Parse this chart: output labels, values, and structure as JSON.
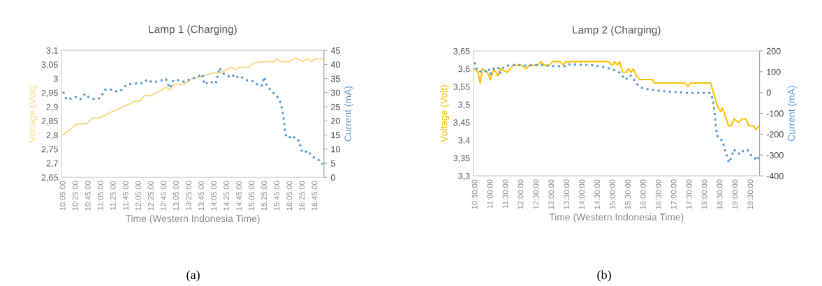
{
  "chart_data": [
    {
      "type": "line",
      "title": "Lamp 1 (Charging)",
      "xlabel": "Time (Western Indonesia Time)",
      "ylabel": "Voltage (Volt)",
      "y2label": "Current (mA)",
      "annotations": [
        "(a)"
      ],
      "xlim": [
        10.04,
        16.98
      ],
      "xticks": [
        {
          "value": 10.0833,
          "label": "10:05:00"
        },
        {
          "value": 10.4167,
          "label": "10:25:00"
        },
        {
          "value": 10.75,
          "label": "10:45:00"
        },
        {
          "value": 11.0833,
          "label": "11:05:00"
        },
        {
          "value": 11.4167,
          "label": "11:25:00"
        },
        {
          "value": 11.75,
          "label": "11:45:00"
        },
        {
          "value": 12.0833,
          "label": "12:05:00"
        },
        {
          "value": 12.4167,
          "label": "12:25:00"
        },
        {
          "value": 12.75,
          "label": "12:45:00"
        },
        {
          "value": 13.0833,
          "label": "13:05:00"
        },
        {
          "value": 13.4167,
          "label": "13:25:00"
        },
        {
          "value": 13.75,
          "label": "13:45:00"
        },
        {
          "value": 14.0833,
          "label": "14:05:00"
        },
        {
          "value": 14.4167,
          "label": "14:25:00"
        },
        {
          "value": 14.75,
          "label": "14:45:00"
        },
        {
          "value": 15.0833,
          "label": "15:05:00"
        },
        {
          "value": 15.4167,
          "label": "15:25:00"
        },
        {
          "value": 15.75,
          "label": "15:45:00"
        },
        {
          "value": 16.0833,
          "label": "16:05:00"
        },
        {
          "value": 16.4167,
          "label": "16:25:00"
        },
        {
          "value": 16.75,
          "label": "16:45:00"
        }
      ],
      "ylim": [
        2.65,
        3.1
      ],
      "yticks": [
        {
          "value": 2.65,
          "label": "2,65"
        },
        {
          "value": 2.7,
          "label": "2,7"
        },
        {
          "value": 2.75,
          "label": "2,75"
        },
        {
          "value": 2.8,
          "label": "2,8"
        },
        {
          "value": 2.85,
          "label": "2,85"
        },
        {
          "value": 2.9,
          "label": "2,9"
        },
        {
          "value": 2.95,
          "label": "2,95"
        },
        {
          "value": 3.0,
          "label": "3"
        },
        {
          "value": 3.05,
          "label": "3,05"
        },
        {
          "value": 3.1,
          "label": "3,1"
        }
      ],
      "y2lim": [
        0,
        45
      ],
      "y2ticks": [
        0,
        5,
        10,
        15,
        20,
        25,
        30,
        35,
        40,
        45
      ],
      "grid": false,
      "series": [
        {
          "color": "#f8d98c",
          "line_style": "solid",
          "x": [
            10.08,
            10.27,
            10.46,
            10.7,
            10.86,
            11.02,
            11.19,
            11.32,
            11.52,
            11.65,
            11.85,
            11.95,
            12.11,
            12.24,
            12.41,
            12.54,
            12.7,
            12.8,
            12.9,
            13.03,
            13.29,
            13.49,
            13.82,
            14.05,
            14.22,
            14.38,
            14.55,
            14.64,
            14.74,
            15.01,
            15.07,
            15.27,
            15.66,
            15.73,
            15.83,
            16.06,
            16.16,
            16.29,
            16.42,
            16.55,
            16.65,
            16.75,
            16.95
          ],
          "values": [
            2.8,
            2.82,
            2.84,
            2.84,
            2.86,
            2.86,
            2.87,
            2.88,
            2.89,
            2.9,
            2.91,
            2.92,
            2.92,
            2.94,
            2.94,
            2.95,
            2.96,
            2.97,
            2.96,
            2.98,
            2.98,
            3.0,
            3.01,
            3.02,
            3.02,
            3.03,
            3.04,
            3.03,
            3.04,
            3.04,
            3.05,
            3.06,
            3.06,
            3.07,
            3.06,
            3.06,
            3.07,
            3.07,
            3.06,
            3.07,
            3.06,
            3.07,
            3.07
          ]
        },
        {
          "color": "#5b9bd5",
          "axis": "y2",
          "line_style": "dotted",
          "x": [
            10.08,
            10.17,
            10.3,
            10.4,
            10.53,
            10.66,
            10.76,
            10.93,
            11.06,
            11.19,
            11.29,
            11.45,
            11.58,
            11.75,
            11.91,
            12.21,
            12.31,
            12.44,
            12.64,
            12.8,
            12.9,
            13.0,
            13.16,
            13.29,
            13.43,
            13.62,
            13.76,
            13.82,
            13.95,
            14.12,
            14.22,
            14.31,
            14.45,
            14.55,
            14.64,
            14.74,
            14.91,
            15.14,
            15.24,
            15.34,
            15.4,
            15.47,
            15.6,
            15.73,
            15.83,
            15.89,
            15.93,
            15.96,
            16.03,
            16.16,
            16.26,
            16.32,
            16.39,
            16.45,
            16.55,
            16.68,
            16.82,
            16.95
          ],
          "values": [
            30.3,
            27.6,
            27.9,
            28.5,
            27.6,
            29.6,
            28.3,
            27.6,
            28.1,
            31.0,
            31.4,
            30.5,
            30.4,
            32.7,
            33.2,
            33.4,
            34.7,
            33.6,
            34.2,
            34.9,
            31.6,
            34.5,
            34.4,
            33.8,
            34.7,
            35.6,
            36.6,
            32.9,
            34.0,
            33.2,
            38.9,
            36.9,
            35.8,
            36.5,
            35.1,
            36.0,
            34.5,
            34.0,
            32.5,
            32.5,
            35.6,
            32.5,
            30.4,
            28.9,
            26.7,
            23.2,
            19.6,
            15.2,
            13.9,
            14.8,
            13.0,
            13.0,
            9.5,
            8.6,
            9.5,
            7.3,
            6.5,
            4.6
          ]
        }
      ]
    },
    {
      "type": "line",
      "title": "Lamp 2 (Charging)",
      "xlabel": "Time (Western Indonesia Time)",
      "ylabel": "Voltage (Volt)",
      "y2label": "Current (mA)",
      "annotations": [
        "(b)"
      ],
      "xlim": [
        10.44,
        19.78
      ],
      "xticks": [
        {
          "value": 10.5,
          "label": "10:30:00"
        },
        {
          "value": 11.0,
          "label": "11:00:00"
        },
        {
          "value": 11.5,
          "label": "11:30:00"
        },
        {
          "value": 12.0,
          "label": "12:00:00"
        },
        {
          "value": 12.5,
          "label": "12:30:00"
        },
        {
          "value": 13.0,
          "label": "13:00:00"
        },
        {
          "value": 13.5,
          "label": "13:30:00"
        },
        {
          "value": 14.0,
          "label": "14:00:00"
        },
        {
          "value": 14.5,
          "label": "14:30:00"
        },
        {
          "value": 15.0,
          "label": "15:00:00"
        },
        {
          "value": 15.5,
          "label": "15:30:00"
        },
        {
          "value": 16.0,
          "label": "16:00:00"
        },
        {
          "value": 16.5,
          "label": "16:30:00"
        },
        {
          "value": 17.0,
          "label": "17:00:00"
        },
        {
          "value": 17.5,
          "label": "17:30:00"
        },
        {
          "value": 18.0,
          "label": "18:00:00"
        },
        {
          "value": 18.5,
          "label": "18:30:00"
        },
        {
          "value": 19.0,
          "label": "19:00:00"
        },
        {
          "value": 19.5,
          "label": "19:30:00"
        }
      ],
      "ylim": [
        3.3,
        3.65
      ],
      "yticks": [
        {
          "value": 3.3,
          "label": "3,3"
        },
        {
          "value": 3.35,
          "label": "3,35"
        },
        {
          "value": 3.4,
          "label": "3,4"
        },
        {
          "value": 3.45,
          "label": "3,45"
        },
        {
          "value": 3.5,
          "label": "3,5"
        },
        {
          "value": 3.55,
          "label": "3,55"
        },
        {
          "value": 3.6,
          "label": "3,6"
        },
        {
          "value": 3.65,
          "label": "3,65"
        }
      ],
      "y2lim": [
        -400,
        200
      ],
      "y2ticks": [
        -400,
        -300,
        -200,
        -100,
        0,
        100,
        200
      ],
      "grid": false,
      "series": [
        {
          "color": "#ffc000",
          "line_style": "solid",
          "x": [
            10.47,
            10.59,
            10.66,
            10.73,
            10.89,
            10.99,
            11.11,
            11.24,
            11.32,
            11.54,
            11.74,
            12.02,
            12.15,
            12.28,
            12.54,
            12.64,
            12.75,
            12.93,
            13.02,
            13.28,
            13.38,
            13.45,
            14.84,
            14.97,
            15.05,
            15.14,
            15.21,
            15.31,
            15.42,
            15.5,
            15.59,
            15.66,
            15.76,
            15.88,
            16.27,
            16.35,
            17.35,
            17.44,
            17.53,
            18.18,
            18.39,
            18.44,
            18.52,
            18.57,
            18.65,
            18.77,
            18.85,
            18.95,
            19.09,
            19.22,
            19.33,
            19.43,
            19.58,
            19.67,
            19.76
          ],
          "values": [
            3.6,
            3.59,
            3.56,
            3.6,
            3.59,
            3.57,
            3.6,
            3.58,
            3.6,
            3.59,
            3.61,
            3.61,
            3.6,
            3.61,
            3.61,
            3.62,
            3.61,
            3.61,
            3.62,
            3.62,
            3.61,
            3.62,
            3.62,
            3.61,
            3.62,
            3.61,
            3.62,
            3.59,
            3.59,
            3.6,
            3.59,
            3.6,
            3.58,
            3.57,
            3.57,
            3.56,
            3.56,
            3.55,
            3.56,
            3.56,
            3.5,
            3.49,
            3.48,
            3.49,
            3.47,
            3.44,
            3.44,
            3.46,
            3.45,
            3.46,
            3.46,
            3.44,
            3.44,
            3.43,
            3.44
          ]
        },
        {
          "color": "#5b9bd5",
          "axis": "y2",
          "line_style": "dotted",
          "x": [
            10.47,
            10.53,
            10.63,
            10.73,
            10.85,
            10.93,
            10.99,
            11.11,
            11.24,
            11.3,
            11.39,
            11.5,
            11.67,
            12.02,
            12.19,
            12.36,
            12.71,
            12.93,
            13.41,
            13.49,
            14.27,
            14.79,
            15.05,
            15.23,
            15.31,
            15.42,
            15.5,
            15.59,
            15.68,
            15.79,
            15.96,
            16.35,
            16.79,
            17.13,
            17.4,
            18.18,
            18.26,
            18.31,
            18.35,
            18.39,
            18.48,
            18.57,
            18.65,
            18.71,
            18.78,
            18.87,
            18.94,
            19.04,
            19.17,
            19.26,
            19.39,
            19.48,
            19.61,
            19.67,
            19.76
          ],
          "values": [
            145,
            116,
            98,
            107,
            103,
            116,
            88,
            116,
            123,
            94,
            116,
            128,
            132,
            132,
            128,
            132,
            132,
            128,
            126,
            136,
            132,
            120,
            107,
            94,
            77,
            62,
            81,
            81,
            62,
            39,
            21,
            11,
            5,
            1,
            -2,
            -2,
            -34,
            -91,
            -155,
            -206,
            -225,
            -229,
            -276,
            -302,
            -336,
            -308,
            -273,
            -289,
            -296,
            -276,
            -276,
            -298,
            -308,
            -327,
            -308
          ]
        }
      ]
    }
  ]
}
